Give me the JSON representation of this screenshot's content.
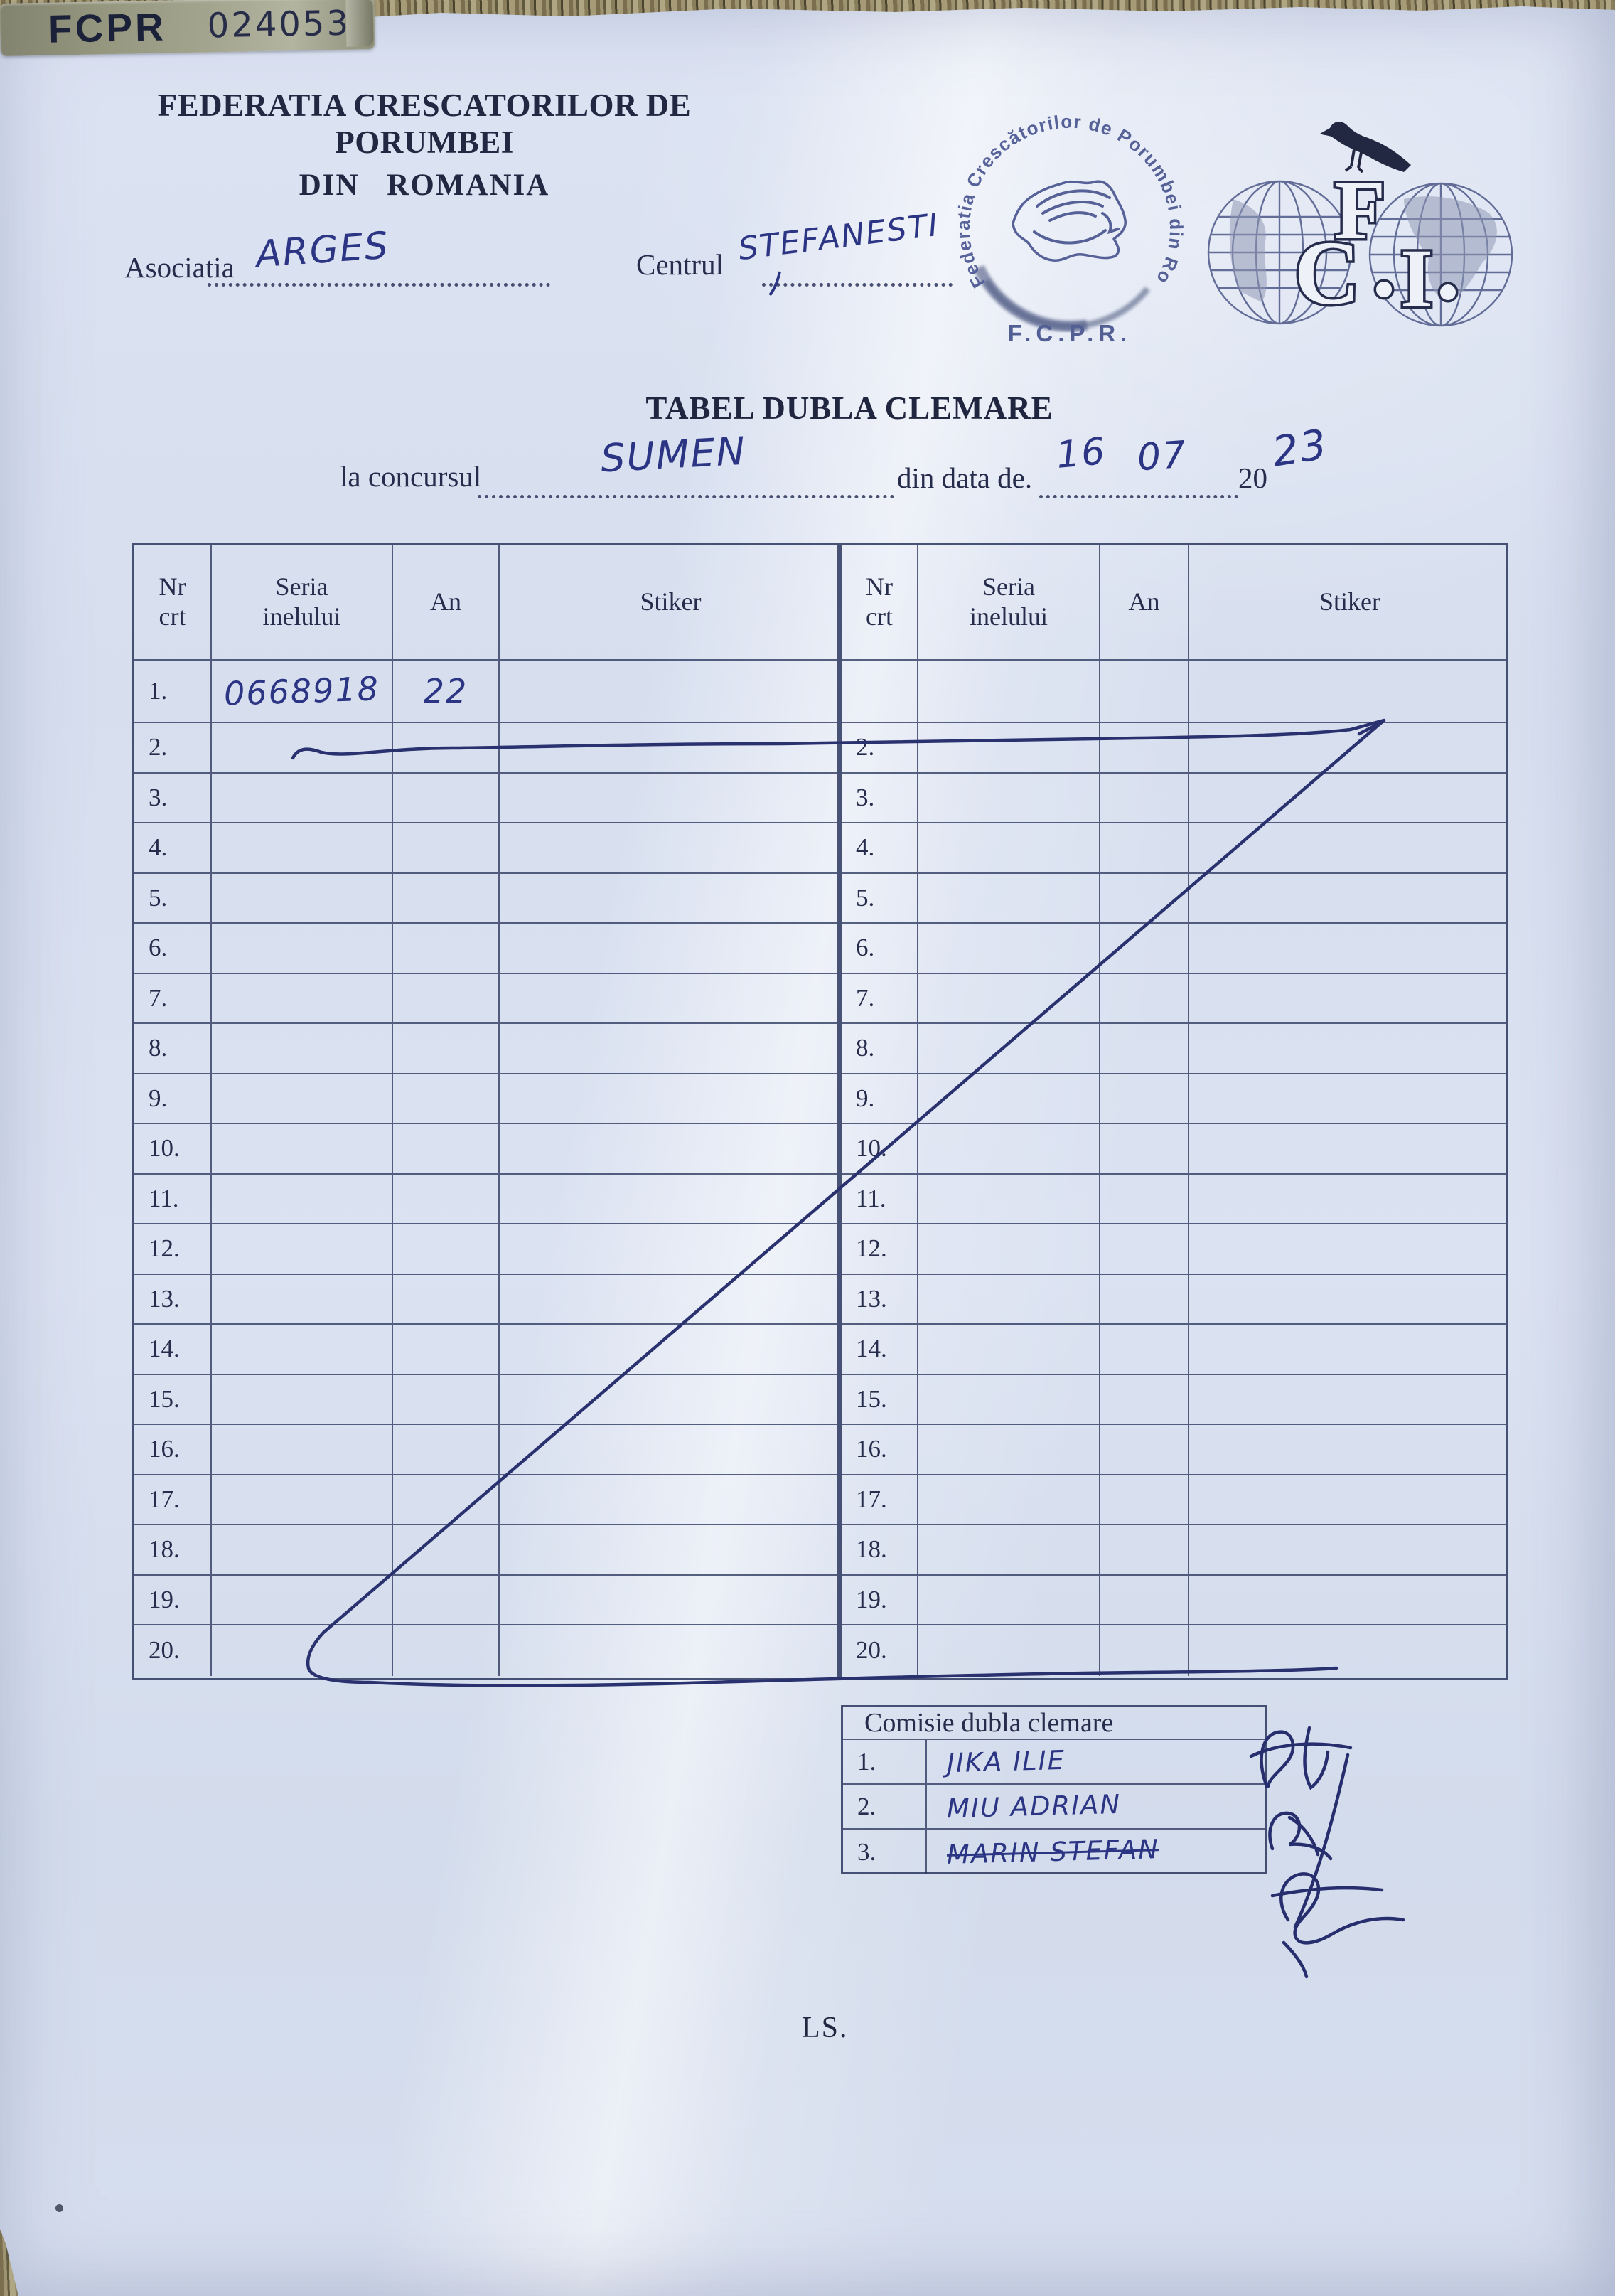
{
  "document": {
    "org_line1": "FEDERATIA CRESCATORILOR DE PORUMBEI",
    "org_line2": "DIN ROMANIA",
    "asociatia_label": "Asociatia",
    "asociatia_value": "ARGES",
    "centrul_label": "Centrul",
    "centrul_value": "STEFANESTI",
    "title": "TABEL DUBLA CLEMARE",
    "concurs_label": "la concursul",
    "concurs_value": "SUMEN",
    "date_label": "din data de.",
    "date_day": "16",
    "date_month": "07",
    "date_year_printed": "20",
    "date_year_handwritten": "23",
    "seal_note": "LS."
  },
  "stamp": {
    "ring_text": "Federatia Crescătorilor de Porumbei din România",
    "abbr": "F.C.P.R."
  },
  "fci_logo": {
    "letters": [
      "F",
      "C",
      "I"
    ]
  },
  "table": {
    "headers": [
      {
        "line1": "Nr",
        "line2": "crt"
      },
      {
        "line1": "Seria",
        "line2": "inelului"
      },
      {
        "line1": "An",
        "line2": ""
      },
      {
        "line1": "Stiker",
        "line2": ""
      }
    ],
    "sticker": {
      "brand": "FCPR",
      "number": "024053"
    },
    "left_rows": [
      {
        "nr": "1.",
        "seria": "0668918",
        "an": "22"
      },
      {
        "nr": "2."
      },
      {
        "nr": "3."
      },
      {
        "nr": "4."
      },
      {
        "nr": "5."
      },
      {
        "nr": "6."
      },
      {
        "nr": "7."
      },
      {
        "nr": "8."
      },
      {
        "nr": "9."
      },
      {
        "nr": "10."
      },
      {
        "nr": "11."
      },
      {
        "nr": "12."
      },
      {
        "nr": "13."
      },
      {
        "nr": "14."
      },
      {
        "nr": "15."
      },
      {
        "nr": "16."
      },
      {
        "nr": "17."
      },
      {
        "nr": "18."
      },
      {
        "nr": "19."
      },
      {
        "nr": "20."
      }
    ],
    "right_rows": [
      {
        "nr": ""
      },
      {
        "nr": "2."
      },
      {
        "nr": "3."
      },
      {
        "nr": "4."
      },
      {
        "nr": "5."
      },
      {
        "nr": "6."
      },
      {
        "nr": "7."
      },
      {
        "nr": "8."
      },
      {
        "nr": "9."
      },
      {
        "nr": "10."
      },
      {
        "nr": "11."
      },
      {
        "nr": "12."
      },
      {
        "nr": "13."
      },
      {
        "nr": "14."
      },
      {
        "nr": "15."
      },
      {
        "nr": "16."
      },
      {
        "nr": "17."
      },
      {
        "nr": "18."
      },
      {
        "nr": "19."
      },
      {
        "nr": "20."
      }
    ]
  },
  "commission": {
    "title": "Comisie dubla clemare",
    "members": [
      {
        "nr": "1.",
        "name": "JIKA ILIE"
      },
      {
        "nr": "2.",
        "name": "MIU ADRIAN"
      },
      {
        "nr": "3.",
        "name": "MARIN STEFAN"
      }
    ]
  }
}
